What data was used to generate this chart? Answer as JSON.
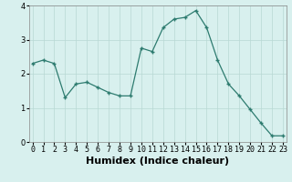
{
  "x": [
    0,
    1,
    2,
    3,
    4,
    5,
    6,
    7,
    8,
    9,
    10,
    11,
    12,
    13,
    14,
    15,
    16,
    17,
    18,
    19,
    20,
    21,
    22,
    23
  ],
  "y": [
    2.3,
    2.4,
    2.3,
    1.3,
    1.7,
    1.75,
    1.6,
    1.45,
    1.35,
    1.35,
    2.75,
    2.65,
    3.35,
    3.6,
    3.65,
    3.85,
    3.35,
    2.4,
    1.7,
    1.35,
    0.95,
    0.55,
    0.18,
    0.18
  ],
  "xlabel": "Humidex (Indice chaleur)",
  "ylim": [
    0,
    4
  ],
  "xlim": [
    -0.3,
    23.3
  ],
  "yticks": [
    0,
    1,
    2,
    3,
    4
  ],
  "xticks": [
    0,
    1,
    2,
    3,
    4,
    5,
    6,
    7,
    8,
    9,
    10,
    11,
    12,
    13,
    14,
    15,
    16,
    17,
    18,
    19,
    20,
    21,
    22,
    23
  ],
  "line_color": "#2d7b6f",
  "marker": "+",
  "bg_color": "#d8f0ee",
  "grid_color": "#b8d8d4",
  "tick_fontsize": 6,
  "xlabel_fontsize": 8
}
